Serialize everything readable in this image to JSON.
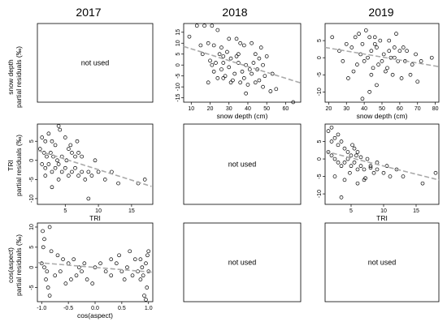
{
  "column_titles": [
    "2017",
    "2018",
    "2019"
  ],
  "not_used_label": "not used",
  "row_ylabels": [
    [
      "snow depth",
      "partial residuals (‰)"
    ],
    [
      "TRI",
      "partial residuals (‰)"
    ],
    [
      "cos(aspect)",
      "partial residuals (‰)"
    ]
  ],
  "colors": {
    "points": "#000000",
    "fit_line": "#a9a9a9",
    "frame": "#000000"
  },
  "chart_data": [
    {
      "id": "snow-2017",
      "row": 0,
      "col": 0,
      "type": "scatter",
      "used": false
    },
    {
      "id": "snow-2018",
      "row": 0,
      "col": 1,
      "type": "scatter",
      "used": true,
      "xlabel": "snow depth (cm)",
      "xticks": [
        10,
        20,
        30,
        40,
        50,
        60
      ],
      "yticks": [
        -15,
        -10,
        -5,
        0,
        5,
        10,
        15
      ],
      "xlim": [
        6,
        68
      ],
      "ylim": [
        -17,
        19
      ],
      "fit_line": {
        "x": [
          6,
          68
        ],
        "y": [
          8.5,
          -8.2
        ]
      },
      "points": [
        [
          9,
          13
        ],
        [
          13,
          18
        ],
        [
          17,
          18
        ],
        [
          21,
          18
        ],
        [
          24,
          16
        ],
        [
          15,
          9
        ],
        [
          19,
          10
        ],
        [
          22,
          9
        ],
        [
          26,
          8
        ],
        [
          30,
          12
        ],
        [
          34,
          12
        ],
        [
          38,
          9
        ],
        [
          42,
          10
        ],
        [
          47,
          8
        ],
        [
          20,
          2
        ],
        [
          23,
          1
        ],
        [
          27,
          4
        ],
        [
          31,
          3
        ],
        [
          35,
          1
        ],
        [
          39,
          0
        ],
        [
          43,
          1
        ],
        [
          22,
          -3
        ],
        [
          26,
          -2
        ],
        [
          30,
          -1
        ],
        [
          33,
          -4
        ],
        [
          37,
          -3
        ],
        [
          41,
          -2
        ],
        [
          45,
          -2
        ],
        [
          49,
          -5
        ],
        [
          24,
          -6
        ],
        [
          28,
          -5
        ],
        [
          32,
          -7
        ],
        [
          36,
          -8
        ],
        [
          44,
          -8
        ],
        [
          48,
          -10
        ],
        [
          52,
          -12
        ],
        [
          40,
          -9
        ],
        [
          19,
          -8
        ],
        [
          27,
          -6
        ],
        [
          55,
          -11
        ],
        [
          64,
          -17
        ],
        [
          46,
          3
        ],
        [
          50,
          4
        ],
        [
          39,
          -13
        ],
        [
          34,
          4
        ],
        [
          29,
          6
        ],
        [
          25,
          5
        ],
        [
          44,
          5
        ],
        [
          48,
          0
        ],
        [
          53,
          -4
        ],
        [
          16,
          5
        ],
        [
          21,
          0
        ],
        [
          38,
          -6
        ],
        [
          31,
          -8
        ],
        [
          42,
          -4
        ],
        [
          46,
          -7
        ],
        [
          35,
          5
        ],
        [
          27,
          1
        ],
        [
          36,
          10
        ]
      ]
    },
    {
      "id": "snow-2019",
      "row": 0,
      "col": 2,
      "type": "scatter",
      "used": true,
      "xlabel": "snow depth (cm)",
      "xticks": [
        20,
        30,
        40,
        50,
        60,
        70,
        80
      ],
      "yticks": [
        -10,
        -5,
        0,
        5
      ],
      "xlim": [
        18,
        82
      ],
      "ylim": [
        -13,
        10
      ],
      "fit_line": {
        "x": [
          18,
          82
        ],
        "y": [
          3.0,
          -2.6
        ]
      },
      "points": [
        [
          22,
          6
        ],
        [
          35,
          6
        ],
        [
          37,
          7
        ],
        [
          41,
          8
        ],
        [
          43,
          6
        ],
        [
          46,
          4
        ],
        [
          49,
          5
        ],
        [
          54,
          5
        ],
        [
          57,
          3
        ],
        [
          60,
          2
        ],
        [
          64,
          2
        ],
        [
          69,
          1
        ],
        [
          30,
          4
        ],
        [
          33,
          3
        ],
        [
          39,
          4
        ],
        [
          44,
          2
        ],
        [
          47,
          3
        ],
        [
          51,
          1
        ],
        [
          55,
          0
        ],
        [
          59,
          -1
        ],
        [
          63,
          -1
        ],
        [
          67,
          -2
        ],
        [
          72,
          -1
        ],
        [
          78,
          0
        ],
        [
          28,
          -1
        ],
        [
          36,
          -2
        ],
        [
          40,
          -1
        ],
        [
          45,
          -3
        ],
        [
          48,
          -2
        ],
        [
          52,
          -4
        ],
        [
          56,
          -5
        ],
        [
          61,
          -6
        ],
        [
          66,
          -5
        ],
        [
          70,
          -7
        ],
        [
          39,
          -12
        ],
        [
          43,
          -10
        ],
        [
          47,
          -8
        ],
        [
          34,
          -4
        ],
        [
          31,
          -6
        ],
        [
          42,
          0
        ],
        [
          50,
          -1
        ],
        [
          54,
          2
        ],
        [
          38,
          1
        ],
        [
          46,
          6
        ],
        [
          58,
          7
        ],
        [
          62,
          3
        ],
        [
          26,
          2
        ],
        [
          44,
          -5
        ],
        [
          53,
          -3
        ],
        [
          57,
          0
        ]
      ]
    },
    {
      "id": "tri-2017",
      "row": 1,
      "col": 0,
      "type": "scatter",
      "used": true,
      "xlabel": "TRI",
      "xticks": [
        5,
        10,
        15
      ],
      "yticks": [
        -10,
        -5,
        0,
        5
      ],
      "xlim": [
        0.8,
        18.2
      ],
      "ylim": [
        -11.5,
        9.5
      ],
      "fit_line": {
        "x": [
          1,
          18
        ],
        "y": [
          2.5,
          -6.8
        ]
      },
      "points": [
        [
          1.5,
          6
        ],
        [
          2,
          5
        ],
        [
          2.5,
          7
        ],
        [
          3,
          5
        ],
        [
          3.5,
          4
        ],
        [
          4,
          9
        ],
        [
          4.2,
          8
        ],
        [
          5,
          6
        ],
        [
          5.5,
          3
        ],
        [
          6,
          2
        ],
        [
          1.2,
          3
        ],
        [
          1.8,
          2
        ],
        [
          2.2,
          1
        ],
        [
          2.8,
          2
        ],
        [
          3.2,
          1
        ],
        [
          3.8,
          0
        ],
        [
          4.5,
          1
        ],
        [
          5.2,
          0
        ],
        [
          6.5,
          1
        ],
        [
          7,
          2
        ],
        [
          1.5,
          -1
        ],
        [
          2,
          -2
        ],
        [
          2.5,
          -1
        ],
        [
          3,
          -3
        ],
        [
          3.5,
          -2
        ],
        [
          4,
          -1
        ],
        [
          4.5,
          -3
        ],
        [
          5,
          -2
        ],
        [
          5.5,
          -4
        ],
        [
          6,
          -3
        ],
        [
          6.5,
          -2
        ],
        [
          7,
          -4
        ],
        [
          7.5,
          -3
        ],
        [
          8,
          -5
        ],
        [
          8.5,
          -3
        ],
        [
          9,
          -4
        ],
        [
          10,
          -3
        ],
        [
          11,
          -5
        ],
        [
          12,
          -3
        ],
        [
          13,
          -6
        ],
        [
          16,
          -6
        ],
        [
          17,
          -5
        ],
        [
          8.5,
          -10
        ],
        [
          3,
          -7
        ],
        [
          4,
          -5
        ],
        [
          2,
          -4
        ],
        [
          9.5,
          0
        ],
        [
          7.5,
          1
        ],
        [
          5.8,
          4
        ],
        [
          6.8,
          5
        ]
      ]
    },
    {
      "id": "tri-2018",
      "row": 1,
      "col": 1,
      "type": "scatter",
      "used": false
    },
    {
      "id": "tri-2019",
      "row": 1,
      "col": 2,
      "type": "scatter",
      "used": true,
      "xlabel": "TRI",
      "xticks": [
        5,
        10,
        15
      ],
      "yticks": [
        -10,
        -5,
        0,
        5
      ],
      "xlim": [
        1,
        18.5
      ],
      "ylim": [
        -13,
        10
      ],
      "fit_line": {
        "x": [
          1,
          18.5
        ],
        "y": [
          2.2,
          -6.0
        ]
      },
      "points": [
        [
          1.5,
          8
        ],
        [
          2,
          9
        ],
        [
          2.5,
          6
        ],
        [
          3,
          4
        ],
        [
          3.5,
          5
        ],
        [
          4,
          3
        ],
        [
          4.5,
          2
        ],
        [
          5,
          1
        ],
        [
          5.5,
          3
        ],
        [
          6,
          2
        ],
        [
          1.5,
          2
        ],
        [
          2,
          1
        ],
        [
          2.5,
          0
        ],
        [
          3,
          -1
        ],
        [
          3.5,
          -2
        ],
        [
          4,
          -1
        ],
        [
          4.5,
          0
        ],
        [
          5,
          -2
        ],
        [
          5.5,
          -1
        ],
        [
          6,
          -3
        ],
        [
          6.5,
          -2
        ],
        [
          7,
          -3
        ],
        [
          7.5,
          0
        ],
        [
          8,
          -2
        ],
        [
          8.5,
          -4
        ],
        [
          9,
          -3
        ],
        [
          10,
          -4
        ],
        [
          11,
          -5
        ],
        [
          12,
          -3
        ],
        [
          13,
          -5
        ],
        [
          16,
          -7
        ],
        [
          18,
          -4
        ],
        [
          3.5,
          -11
        ],
        [
          4,
          -6
        ],
        [
          2.5,
          -5
        ],
        [
          6,
          -7
        ],
        [
          7,
          -6
        ],
        [
          4.8,
          -4
        ],
        [
          5.8,
          1
        ],
        [
          9,
          -1
        ],
        [
          3,
          7
        ],
        [
          2,
          5
        ],
        [
          8,
          -2.5
        ],
        [
          6.5,
          0.5
        ],
        [
          5.2,
          4
        ],
        [
          10.5,
          -2
        ],
        [
          7.2,
          -5.5
        ]
      ]
    },
    {
      "id": "aspect-2017",
      "row": 2,
      "col": 0,
      "type": "scatter",
      "used": true,
      "xlabel": "cos(aspect)",
      "xticks": [
        -1.0,
        -0.5,
        0.0,
        0.5,
        1.0
      ],
      "xtick_labels": [
        "-1.0",
        "-0.5",
        "0.0",
        "0.5",
        "1.0"
      ],
      "yticks": [
        -5,
        0,
        5,
        10
      ],
      "xlim": [
        -1.08,
        1.08
      ],
      "ylim": [
        -8.5,
        11
      ],
      "fit_line": {
        "x": [
          -1.08,
          1.08
        ],
        "y": [
          1.2,
          -1.2
        ]
      },
      "points": [
        [
          -0.98,
          9
        ],
        [
          -0.85,
          10
        ],
        [
          -0.97,
          5
        ],
        [
          -0.82,
          4
        ],
        [
          -0.7,
          3
        ],
        [
          -0.6,
          2
        ],
        [
          -0.5,
          1
        ],
        [
          -0.4,
          2
        ],
        [
          -0.3,
          0
        ],
        [
          -0.2,
          1
        ],
        [
          -1.0,
          1
        ],
        [
          -0.95,
          0
        ],
        [
          -0.9,
          -1
        ],
        [
          -0.92,
          -3
        ],
        [
          -0.88,
          -5
        ],
        [
          -0.85,
          -7
        ],
        [
          -0.75,
          -2
        ],
        [
          -0.65,
          -1
        ],
        [
          -0.55,
          -4
        ],
        [
          -0.45,
          -3
        ],
        [
          -0.35,
          -2
        ],
        [
          -0.25,
          -1
        ],
        [
          -0.15,
          -3
        ],
        [
          0.0,
          0
        ],
        [
          0.1,
          1
        ],
        [
          0.2,
          -1
        ],
        [
          0.3,
          -2
        ],
        [
          0.4,
          1
        ],
        [
          0.5,
          -1
        ],
        [
          0.55,
          -3
        ],
        [
          0.6,
          0
        ],
        [
          0.7,
          -2
        ],
        [
          0.75,
          2
        ],
        [
          0.8,
          -1
        ],
        [
          0.85,
          -3
        ],
        [
          0.88,
          0
        ],
        [
          0.9,
          -2
        ],
        [
          0.95,
          1
        ],
        [
          0.97,
          -5
        ],
        [
          1.0,
          4
        ],
        [
          0.98,
          3
        ],
        [
          0.92,
          -7
        ],
        [
          0.95,
          -8
        ],
        [
          1.0,
          -1
        ],
        [
          -0.05,
          -4
        ],
        [
          0.45,
          3
        ],
        [
          0.65,
          4
        ],
        [
          -0.95,
          7
        ],
        [
          0.85,
          2
        ],
        [
          0.3,
          2
        ]
      ]
    },
    {
      "id": "aspect-2018",
      "row": 2,
      "col": 1,
      "type": "scatter",
      "used": false
    },
    {
      "id": "aspect-2019",
      "row": 2,
      "col": 2,
      "type": "scatter",
      "used": false
    }
  ]
}
